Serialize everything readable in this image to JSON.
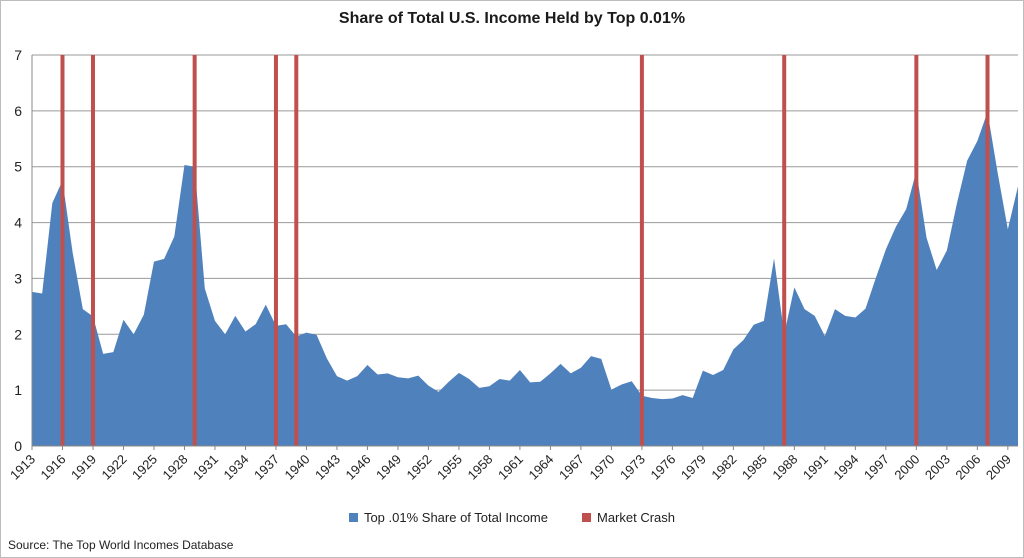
{
  "chart_data": {
    "type": "area",
    "title": "Share of Total U.S. Income Held by Top 0.01%",
    "ylim": [
      0,
      7
    ],
    "y_ticks": [
      "0",
      "1",
      "2",
      "3",
      "4",
      "5",
      "6",
      "7"
    ],
    "x_tick_labels": [
      "1913",
      "1916",
      "1919",
      "1922",
      "1925",
      "1928",
      "1931",
      "1934",
      "1937",
      "1940",
      "1943",
      "1946",
      "1949",
      "1952",
      "1955",
      "1958",
      "1961",
      "1964",
      "1967",
      "1970",
      "1973",
      "1976",
      "1979",
      "1982",
      "1985",
      "1988",
      "1991",
      "1994",
      "1997",
      "2000",
      "2003",
      "2006",
      "2009"
    ],
    "x": [
      1913,
      1914,
      1915,
      1916,
      1917,
      1918,
      1919,
      1920,
      1921,
      1922,
      1923,
      1924,
      1925,
      1926,
      1927,
      1928,
      1929,
      1930,
      1931,
      1932,
      1933,
      1934,
      1935,
      1936,
      1937,
      1938,
      1939,
      1940,
      1941,
      1942,
      1943,
      1944,
      1945,
      1946,
      1947,
      1948,
      1949,
      1950,
      1951,
      1952,
      1953,
      1954,
      1955,
      1956,
      1957,
      1958,
      1959,
      1960,
      1961,
      1962,
      1963,
      1964,
      1965,
      1966,
      1967,
      1968,
      1969,
      1970,
      1971,
      1972,
      1973,
      1974,
      1975,
      1976,
      1977,
      1978,
      1979,
      1980,
      1981,
      1982,
      1983,
      1984,
      1985,
      1986,
      1987,
      1988,
      1989,
      1990,
      1991,
      1992,
      1993,
      1994,
      1995,
      1996,
      1997,
      1998,
      1999,
      2000,
      2001,
      2002,
      2003,
      2004,
      2005,
      2006,
      2007,
      2008,
      2009,
      2010
    ],
    "series": [
      {
        "name": "Top .01% Share of Total Income",
        "color": "#4f81bd",
        "values": [
          2.76,
          2.73,
          4.35,
          4.75,
          3.46,
          2.45,
          2.32,
          1.65,
          1.68,
          2.26,
          2.0,
          2.35,
          3.3,
          3.35,
          3.75,
          5.03,
          5.0,
          2.82,
          2.24,
          2.0,
          2.33,
          2.05,
          2.18,
          2.53,
          2.15,
          2.18,
          1.96,
          2.03,
          1.99,
          1.57,
          1.25,
          1.17,
          1.25,
          1.45,
          1.28,
          1.3,
          1.23,
          1.21,
          1.26,
          1.08,
          0.97,
          1.15,
          1.31,
          1.2,
          1.04,
          1.07,
          1.2,
          1.17,
          1.36,
          1.14,
          1.15,
          1.3,
          1.47,
          1.3,
          1.4,
          1.61,
          1.56,
          1.01,
          1.1,
          1.16,
          0.9,
          0.86,
          0.84,
          0.85,
          0.91,
          0.86,
          1.35,
          1.27,
          1.36,
          1.73,
          1.9,
          2.17,
          2.24,
          3.36,
          2.0,
          2.84,
          2.45,
          2.33,
          1.97,
          2.45,
          2.33,
          2.3,
          2.46,
          3.0,
          3.52,
          3.93,
          4.24,
          4.92,
          3.73,
          3.15,
          3.5,
          4.35,
          5.11,
          5.46,
          5.98,
          4.89,
          3.88,
          4.65
        ]
      },
      {
        "name": "Market Crash",
        "color": "#c0504d",
        "years": [
          1916,
          1919,
          1929,
          1937,
          1939,
          1973,
          1987,
          2000,
          2007
        ]
      }
    ],
    "legend": [
      "Top .01% Share of Total Income",
      "Market Crash"
    ],
    "legend_position": "bottom",
    "grid": true
  },
  "source": "Source: The Top World Incomes Database"
}
